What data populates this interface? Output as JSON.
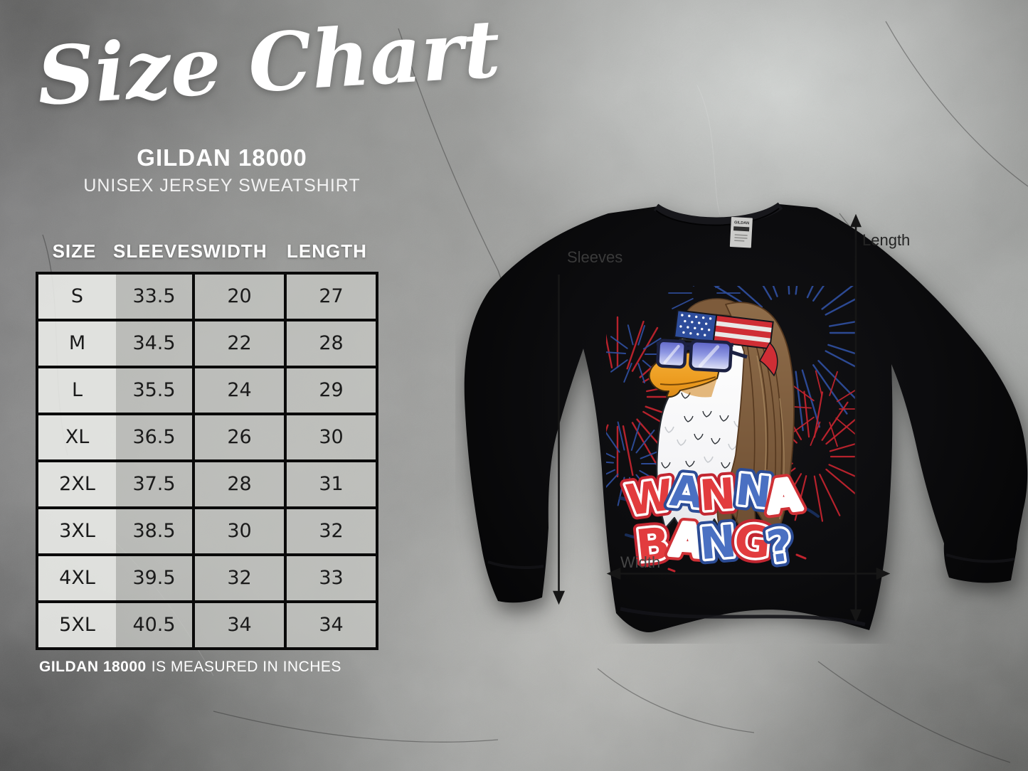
{
  "header": {
    "title": "Size Chart",
    "product_name": "GILDAN 18000",
    "product_subtitle": "UNISEX JERSEY SWEATSHIRT"
  },
  "table": {
    "columns": [
      "SIZE",
      "SLEEVES",
      "WIDTH",
      "LENGTH"
    ],
    "rows": [
      [
        "S",
        "33.5",
        "20",
        "27"
      ],
      [
        "M",
        "34.5",
        "22",
        "28"
      ],
      [
        "L",
        "35.5",
        "24",
        "29"
      ],
      [
        "XL",
        "36.5",
        "26",
        "30"
      ],
      [
        "2XL",
        "37.5",
        "28",
        "31"
      ],
      [
        "3XL",
        "38.5",
        "30",
        "32"
      ],
      [
        "4XL",
        "39.5",
        "32",
        "33"
      ],
      [
        "5XL",
        "40.5",
        "34",
        "34"
      ]
    ]
  },
  "footnote": {
    "bold": "GILDAN 18000",
    "text": "IS MEASURED IN INCHES"
  },
  "measurements": {
    "sleeves": "Sleeves",
    "length": "Length",
    "width": "Width"
  },
  "shirt": {
    "color": "black",
    "neck_tag_brand": "GILDAN",
    "design_text_line1": "WANNA",
    "design_text_line2": "BANG?",
    "design_description": "Bald eagle with brown mullet, American flag headband, blue sunglasses, red and blue fireworks"
  },
  "colors": {
    "design_red": "#d8353a",
    "design_blue": "#4a70c2",
    "flag_blue": "#2e4d9b",
    "flag_red": "#cf2e35"
  },
  "chart_data": {
    "type": "table",
    "title": "Size Chart",
    "subtitle": "GILDAN 18000 — UNISEX JERSEY SWEATSHIRT",
    "units": "inches",
    "columns": [
      "SIZE",
      "SLEEVES",
      "WIDTH",
      "LENGTH"
    ],
    "rows": [
      [
        "S",
        33.5,
        20,
        27
      ],
      [
        "M",
        34.5,
        22,
        28
      ],
      [
        "L",
        35.5,
        24,
        29
      ],
      [
        "XL",
        36.5,
        26,
        30
      ],
      [
        "2XL",
        37.5,
        28,
        31
      ],
      [
        "3XL",
        38.5,
        30,
        32
      ],
      [
        "4XL",
        39.5,
        32,
        33
      ],
      [
        "5XL",
        40.5,
        34,
        34
      ]
    ],
    "footnote": "GILDAN 18000 IS MEASURED IN INCHES"
  }
}
